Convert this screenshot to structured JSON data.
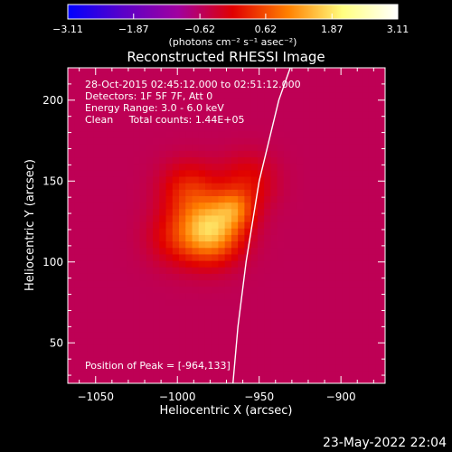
{
  "chart_data": {
    "type": "heatmap",
    "title": "Reconstructed RHESSI Image",
    "colorbar": {
      "ticks": [
        "-3.11",
        "-1.87",
        "-0.62",
        "0.62",
        "1.87",
        "3.11"
      ],
      "range": [
        -3.11,
        3.11
      ],
      "unit_label": "(photons cm⁻² s⁻¹ asec⁻²)",
      "colormap": [
        "#0000ff",
        "#5a00c8",
        "#a000a0",
        "#e00000",
        "#ff8000",
        "#ffff80",
        "#ffffff"
      ]
    },
    "xlabel": "Heliocentric X (arcsec)",
    "ylabel": "Heliocentric Y (arcsec)",
    "xlim": [
      -1067,
      -873
    ],
    "ylim": [
      25,
      220
    ],
    "xticks": [
      {
        "value": -1050,
        "label": "−1050"
      },
      {
        "value": -1000,
        "label": "−1000"
      },
      {
        "value": -950,
        "label": "−950"
      },
      {
        "value": -900,
        "label": "−900"
      }
    ],
    "yticks": [
      {
        "value": 50,
        "label": "50"
      },
      {
        "value": 100,
        "label": "100"
      },
      {
        "value": 150,
        "label": "150"
      },
      {
        "value": 200,
        "label": "200"
      }
    ],
    "info_lines": [
      "28-Oct-2015 02:45:12.000 to 02:51:12.000",
      "Detectors: 1F 5F 7F, Att 0",
      "Energy Range: 3.0 - 6.0 keV",
      "Clean     Total counts: 1.44E+05"
    ],
    "peak_label": "Position of Peak = [-964,133]",
    "peak": {
      "x": -964,
      "y": 133
    },
    "sources": [
      {
        "x": -980,
        "y": 120,
        "sigma": 13,
        "amp": 2.2
      },
      {
        "x": -965,
        "y": 133,
        "sigma": 8,
        "amp": 1.0
      },
      {
        "x": -993,
        "y": 145,
        "sigma": 12,
        "amp": 0.8
      },
      {
        "x": -957,
        "y": 150,
        "sigma": 12,
        "amp": 0.6
      },
      {
        "x": -1002,
        "y": 115,
        "sigma": 12,
        "amp": 0.5
      }
    ],
    "background": {
      "level": -0.55
    },
    "limb": [
      {
        "x": -966,
        "y": 25
      },
      {
        "x": -963,
        "y": 60
      },
      {
        "x": -958,
        "y": 100
      },
      {
        "x": -950,
        "y": 150
      },
      {
        "x": -938,
        "y": 200
      },
      {
        "x": -931,
        "y": 220
      }
    ]
  },
  "footer": {
    "date": "23-May-2022 22:04"
  }
}
